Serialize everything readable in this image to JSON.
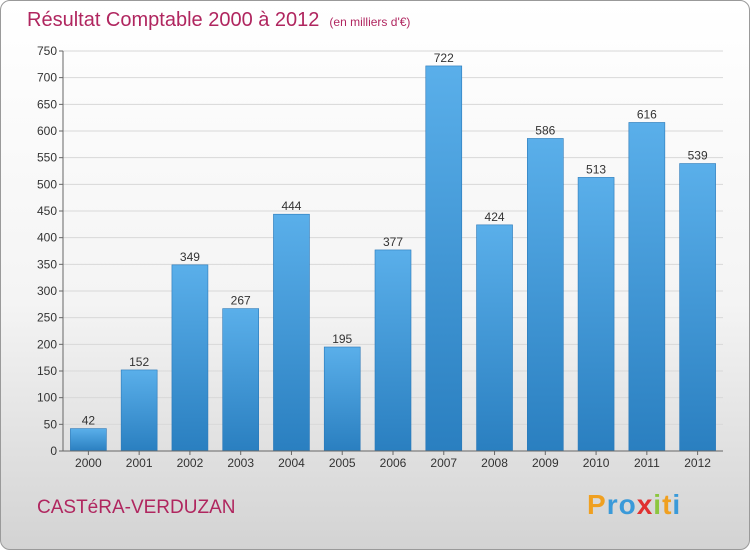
{
  "header": {
    "title": "Résultat Comptable 2000 à 2012",
    "subtitle": "(en milliers d'€)"
  },
  "footer": {
    "city": "CASTéRA-VERDUZAN",
    "logo": [
      "P",
      "r",
      "o",
      "x",
      "i",
      "t",
      "i"
    ],
    "logo_colors": [
      "#f0a020",
      "#3a9ad9",
      "#3a9ad9",
      "#e03030",
      "#8cc63f",
      "#f0a020",
      "#3a9ad9"
    ]
  },
  "colors": {
    "bar_light": "#5aafea",
    "bar_dark": "#2a7fc0",
    "text_accent": "#b0265f"
  },
  "chart_data": {
    "type": "bar",
    "title": "Résultat Comptable 2000 à 2012",
    "subtitle": "(en milliers d'€)",
    "categories": [
      "2000",
      "2001",
      "2002",
      "2003",
      "2004",
      "2005",
      "2006",
      "2007",
      "2008",
      "2009",
      "2010",
      "2011",
      "2012"
    ],
    "values": [
      42,
      152,
      349,
      267,
      444,
      195,
      377,
      722,
      424,
      586,
      513,
      616,
      539
    ],
    "ylim": [
      0,
      750
    ],
    "yticks": [
      0,
      50,
      100,
      150,
      200,
      250,
      300,
      350,
      400,
      450,
      500,
      550,
      600,
      650,
      700,
      750
    ],
    "grid": true,
    "legend": "none"
  }
}
